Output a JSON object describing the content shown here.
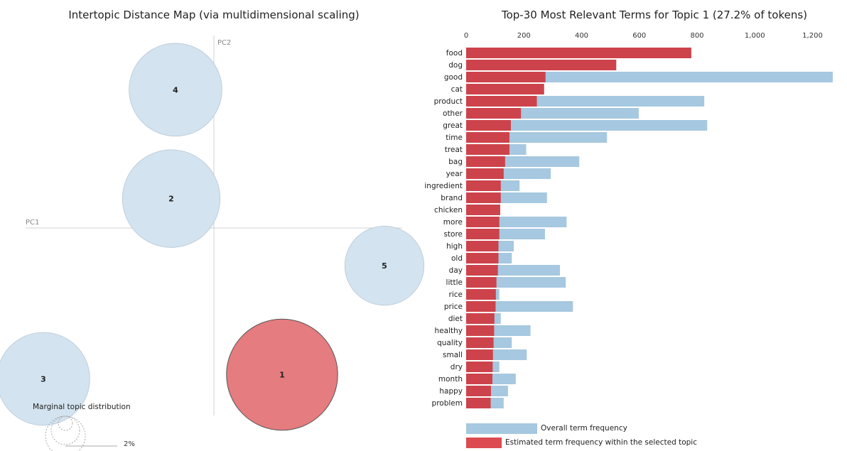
{
  "left_panel": {
    "title": "Intertopic Distance Map (via multidimensional scaling)",
    "pc1_label": "PC1",
    "pc2_label": "PC2",
    "marginal_title": "Marginal topic distribution",
    "marginal_value": "2%"
  },
  "right_panel": {
    "title": "Top-30 Most Relevant Terms for Topic 1 (27.2% of tokens)",
    "legend_overall": "Overall term frequency",
    "legend_topic": "Estimated term frequency within the selected topic"
  },
  "colors": {
    "overall": "#a6c8e0",
    "topic": "#cd434b",
    "selected_circle": "#e57c7f",
    "circle": "#d3e3ef"
  },
  "chart_data": [
    {
      "type": "scatter",
      "title": "Intertopic Distance Map (via multidimensional scaling)",
      "xlabel": "PC1",
      "ylabel": "PC2",
      "selected_topic": "1",
      "topics": [
        {
          "label": "1",
          "x": 0.16,
          "y": -0.35,
          "size": 27.2
        },
        {
          "label": "2",
          "x": -0.1,
          "y": 0.07,
          "size": 21.0
        },
        {
          "label": "3",
          "x": -0.4,
          "y": -0.36,
          "size": 19.0
        },
        {
          "label": "4",
          "x": -0.09,
          "y": 0.33,
          "size": 19.0
        },
        {
          "label": "5",
          "x": 0.4,
          "y": -0.09,
          "size": 13.8
        }
      ]
    },
    {
      "type": "bar",
      "orientation": "horizontal",
      "title": "Top-30 Most Relevant Terms for Topic 1 (27.2% of tokens)",
      "xlim": [
        0,
        1280
      ],
      "xticks": [
        0,
        200,
        400,
        600,
        800,
        1000,
        1200
      ],
      "xtick_labels": [
        "0",
        "200",
        "400",
        "600",
        "800",
        "1,000",
        "1,200"
      ],
      "categories": [
        "food",
        "dog",
        "good",
        "cat",
        "product",
        "other",
        "great",
        "time",
        "treat",
        "bag",
        "year",
        "ingredient",
        "brand",
        "chicken",
        "more",
        "store",
        "high",
        "old",
        "day",
        "little",
        "rice",
        "price",
        "diet",
        "healthy",
        "quality",
        "small",
        "dry",
        "month",
        "happy",
        "problem"
      ],
      "series": [
        {
          "name": "Overall term frequency",
          "values": [
            780,
            520,
            1270,
            270,
            825,
            598,
            835,
            488,
            208,
            392,
            293,
            185,
            280,
            118,
            348,
            273,
            165,
            158,
            325,
            345,
            115,
            370,
            120,
            223,
            158,
            210,
            115,
            172,
            145,
            130
          ]
        },
        {
          "name": "Estimated term frequency within the selected topic",
          "values": [
            780,
            520,
            275,
            270,
            245,
            190,
            155,
            150,
            150,
            135,
            130,
            120,
            120,
            118,
            115,
            115,
            112,
            112,
            110,
            105,
            103,
            102,
            98,
            97,
            95,
            93,
            92,
            91,
            86,
            85
          ]
        }
      ]
    }
  ]
}
